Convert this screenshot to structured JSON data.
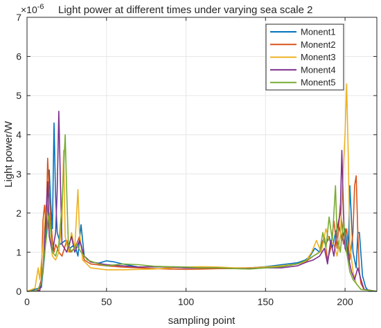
{
  "chart_data": {
    "type": "line",
    "title": "Light power at different times under varying sea scale 2",
    "xlabel": "sampling point",
    "ylabel": "Light power/W",
    "y_exponent": "×10",
    "y_exponent_power": "-6",
    "xlim": [
      0,
      220
    ],
    "ylim": [
      0,
      7
    ],
    "xticks": [
      0,
      50,
      100,
      150,
      200
    ],
    "yticks": [
      0,
      1,
      2,
      3,
      4,
      5,
      6,
      7
    ],
    "grid": true,
    "legend_position": "top-right",
    "series": [
      {
        "name": "Monent1",
        "color": "#0072BD",
        "points": [
          [
            0,
            0
          ],
          [
            5,
            0.05
          ],
          [
            9,
            0.1
          ],
          [
            11,
            0.9
          ],
          [
            13,
            2.0
          ],
          [
            14,
            3.1
          ],
          [
            15,
            2.2
          ],
          [
            16,
            1.6
          ],
          [
            17,
            4.3
          ],
          [
            18,
            2.4
          ],
          [
            19,
            1.5
          ],
          [
            21,
            1.2
          ],
          [
            24,
            1.3
          ],
          [
            27,
            1.1
          ],
          [
            30,
            1.2
          ],
          [
            32,
            0.9
          ],
          [
            34,
            1.7
          ],
          [
            36,
            0.9
          ],
          [
            40,
            0.75
          ],
          [
            45,
            0.72
          ],
          [
            50,
            0.78
          ],
          [
            55,
            0.75
          ],
          [
            60,
            0.7
          ],
          [
            70,
            0.62
          ],
          [
            80,
            0.63
          ],
          [
            90,
            0.62
          ],
          [
            100,
            0.6
          ],
          [
            110,
            0.6
          ],
          [
            120,
            0.6
          ],
          [
            130,
            0.58
          ],
          [
            140,
            0.6
          ],
          [
            150,
            0.63
          ],
          [
            160,
            0.68
          ],
          [
            170,
            0.73
          ],
          [
            175,
            0.8
          ],
          [
            178,
            0.9
          ],
          [
            181,
            1.1
          ],
          [
            184,
            1.0
          ],
          [
            186,
            1.3
          ],
          [
            188,
            1.2
          ],
          [
            190,
            1.4
          ],
          [
            192,
            1.1
          ],
          [
            194,
            1.5
          ],
          [
            196,
            1.7
          ],
          [
            198,
            1.3
          ],
          [
            200,
            1.6
          ],
          [
            202,
            0.9
          ],
          [
            203,
            2.7
          ],
          [
            205,
            1.0
          ],
          [
            207,
            0.6
          ],
          [
            208,
            1.5
          ],
          [
            209,
            1.5
          ],
          [
            211,
            0.4
          ],
          [
            213,
            0.1
          ],
          [
            215,
            0
          ],
          [
            220,
            0
          ]
        ]
      },
      {
        "name": "Monent2",
        "color": "#D95319",
        "points": [
          [
            0,
            0
          ],
          [
            7,
            0.02
          ],
          [
            9,
            0.3
          ],
          [
            10,
            1.8
          ],
          [
            11,
            2.2
          ],
          [
            12,
            1.6
          ],
          [
            13,
            3.4
          ],
          [
            14,
            2.5
          ],
          [
            15,
            1.8
          ],
          [
            16,
            1.3
          ],
          [
            17,
            1.0
          ],
          [
            18,
            1.2
          ],
          [
            20,
            1.0
          ],
          [
            22,
            0.9
          ],
          [
            25,
            1.3
          ],
          [
            27,
            1.0
          ],
          [
            30,
            1.1
          ],
          [
            33,
            1.4
          ],
          [
            36,
            0.8
          ],
          [
            40,
            0.7
          ],
          [
            50,
            0.65
          ],
          [
            60,
            0.62
          ],
          [
            70,
            0.6
          ],
          [
            80,
            0.58
          ],
          [
            90,
            0.57
          ],
          [
            100,
            0.56
          ],
          [
            110,
            0.57
          ],
          [
            120,
            0.58
          ],
          [
            130,
            0.58
          ],
          [
            140,
            0.6
          ],
          [
            150,
            0.62
          ],
          [
            160,
            0.63
          ],
          [
            170,
            0.7
          ],
          [
            175,
            0.75
          ],
          [
            180,
            0.9
          ],
          [
            184,
            1.0
          ],
          [
            187,
            1.4
          ],
          [
            189,
            0.8
          ],
          [
            191,
            1.1
          ],
          [
            193,
            1.8
          ],
          [
            195,
            1.1
          ],
          [
            197,
            2.2
          ],
          [
            199,
            1.2
          ],
          [
            201,
            1.6
          ],
          [
            203,
            0.8
          ],
          [
            205,
            1.5
          ],
          [
            206,
            2.7
          ],
          [
            207,
            2.95
          ],
          [
            208,
            1.5
          ],
          [
            209,
            0.5
          ],
          [
            210,
            0.2
          ],
          [
            212,
            0.05
          ],
          [
            220,
            0
          ]
        ]
      },
      {
        "name": "Monent3",
        "color": "#EDB120",
        "points": [
          [
            0,
            0
          ],
          [
            5,
            0.08
          ],
          [
            7,
            0.6
          ],
          [
            8,
            0.3
          ],
          [
            10,
            1.2
          ],
          [
            12,
            2.2
          ],
          [
            14,
            1.5
          ],
          [
            16,
            0.9
          ],
          [
            18,
            0.8
          ],
          [
            20,
            1.0
          ],
          [
            22,
            1.8
          ],
          [
            23,
            3.6
          ],
          [
            24,
            1.4
          ],
          [
            26,
            1.0
          ],
          [
            28,
            1.5
          ],
          [
            30,
            1.1
          ],
          [
            32,
            2.6
          ],
          [
            33,
            1.5
          ],
          [
            35,
            0.8
          ],
          [
            40,
            0.6
          ],
          [
            50,
            0.55
          ],
          [
            60,
            0.55
          ],
          [
            70,
            0.56
          ],
          [
            80,
            0.57
          ],
          [
            90,
            0.6
          ],
          [
            100,
            0.62
          ],
          [
            110,
            0.63
          ],
          [
            120,
            0.62
          ],
          [
            130,
            0.6
          ],
          [
            140,
            0.6
          ],
          [
            150,
            0.62
          ],
          [
            160,
            0.65
          ],
          [
            170,
            0.7
          ],
          [
            175,
            0.75
          ],
          [
            179,
            1.0
          ],
          [
            182,
            1.3
          ],
          [
            185,
            1.0
          ],
          [
            188,
            1.6
          ],
          [
            190,
            1.3
          ],
          [
            193,
            1.2
          ],
          [
            195,
            0.9
          ],
          [
            197,
            1.4
          ],
          [
            199,
            3.2
          ],
          [
            200,
            4.0
          ],
          [
            201,
            5.3
          ],
          [
            202,
            3.5
          ],
          [
            203,
            1.2
          ],
          [
            205,
            0.5
          ],
          [
            207,
            0.2
          ],
          [
            210,
            0.05
          ],
          [
            220,
            0
          ]
        ]
      },
      {
        "name": "Monent4",
        "color": "#7E2F8E",
        "points": [
          [
            0,
            0
          ],
          [
            8,
            0.02
          ],
          [
            10,
            0.5
          ],
          [
            12,
            2.0
          ],
          [
            13,
            2.8
          ],
          [
            14,
            1.4
          ],
          [
            16,
            1.0
          ],
          [
            18,
            1.5
          ],
          [
            19,
            2.6
          ],
          [
            20,
            4.6
          ],
          [
            21,
            2.8
          ],
          [
            22,
            1.2
          ],
          [
            25,
            1.0
          ],
          [
            28,
            1.4
          ],
          [
            30,
            1.0
          ],
          [
            33,
            1.3
          ],
          [
            36,
            0.9
          ],
          [
            40,
            0.75
          ],
          [
            50,
            0.68
          ],
          [
            60,
            0.65
          ],
          [
            70,
            0.62
          ],
          [
            80,
            0.63
          ],
          [
            90,
            0.62
          ],
          [
            100,
            0.6
          ],
          [
            110,
            0.6
          ],
          [
            120,
            0.6
          ],
          [
            130,
            0.58
          ],
          [
            140,
            0.58
          ],
          [
            150,
            0.6
          ],
          [
            160,
            0.6
          ],
          [
            170,
            0.65
          ],
          [
            176,
            0.75
          ],
          [
            180,
            0.8
          ],
          [
            184,
            0.9
          ],
          [
            187,
            1.1
          ],
          [
            189,
            0.7
          ],
          [
            191,
            1.3
          ],
          [
            193,
            0.9
          ],
          [
            195,
            1.6
          ],
          [
            197,
            2.0
          ],
          [
            198,
            3.6
          ],
          [
            199,
            2.0
          ],
          [
            200,
            1.1
          ],
          [
            202,
            0.9
          ],
          [
            204,
            0.5
          ],
          [
            206,
            0.3
          ],
          [
            208,
            0.6
          ],
          [
            210,
            0.3
          ],
          [
            212,
            0.05
          ],
          [
            220,
            0
          ]
        ]
      },
      {
        "name": "Monent5",
        "color": "#77AC30",
        "points": [
          [
            0,
            0
          ],
          [
            6,
            0.01
          ],
          [
            9,
            0.2
          ],
          [
            10,
            0.6
          ],
          [
            12,
            1.3
          ],
          [
            14,
            2.0
          ],
          [
            16,
            1.0
          ],
          [
            18,
            0.9
          ],
          [
            20,
            1.2
          ],
          [
            22,
            2.2
          ],
          [
            24,
            4.0
          ],
          [
            25,
            2.5
          ],
          [
            26,
            1.2
          ],
          [
            28,
            1.0
          ],
          [
            31,
            1.2
          ],
          [
            34,
            1.0
          ],
          [
            38,
            0.8
          ],
          [
            45,
            0.7
          ],
          [
            50,
            0.65
          ],
          [
            60,
            0.7
          ],
          [
            70,
            0.68
          ],
          [
            80,
            0.64
          ],
          [
            90,
            0.63
          ],
          [
            100,
            0.62
          ],
          [
            110,
            0.6
          ],
          [
            120,
            0.6
          ],
          [
            130,
            0.58
          ],
          [
            140,
            0.57
          ],
          [
            150,
            0.6
          ],
          [
            160,
            0.63
          ],
          [
            170,
            0.7
          ],
          [
            175,
            0.78
          ],
          [
            180,
            0.9
          ],
          [
            184,
            1.0
          ],
          [
            186,
            1.5
          ],
          [
            188,
            1.1
          ],
          [
            190,
            1.9
          ],
          [
            192,
            1.3
          ],
          [
            194,
            2.7
          ],
          [
            195,
            1.4
          ],
          [
            197,
            1.0
          ],
          [
            199,
            1.8
          ],
          [
            201,
            1.0
          ],
          [
            203,
            0.5
          ],
          [
            205,
            0.3
          ],
          [
            207,
            0.2
          ],
          [
            210,
            0.05
          ],
          [
            220,
            0
          ]
        ]
      }
    ]
  }
}
